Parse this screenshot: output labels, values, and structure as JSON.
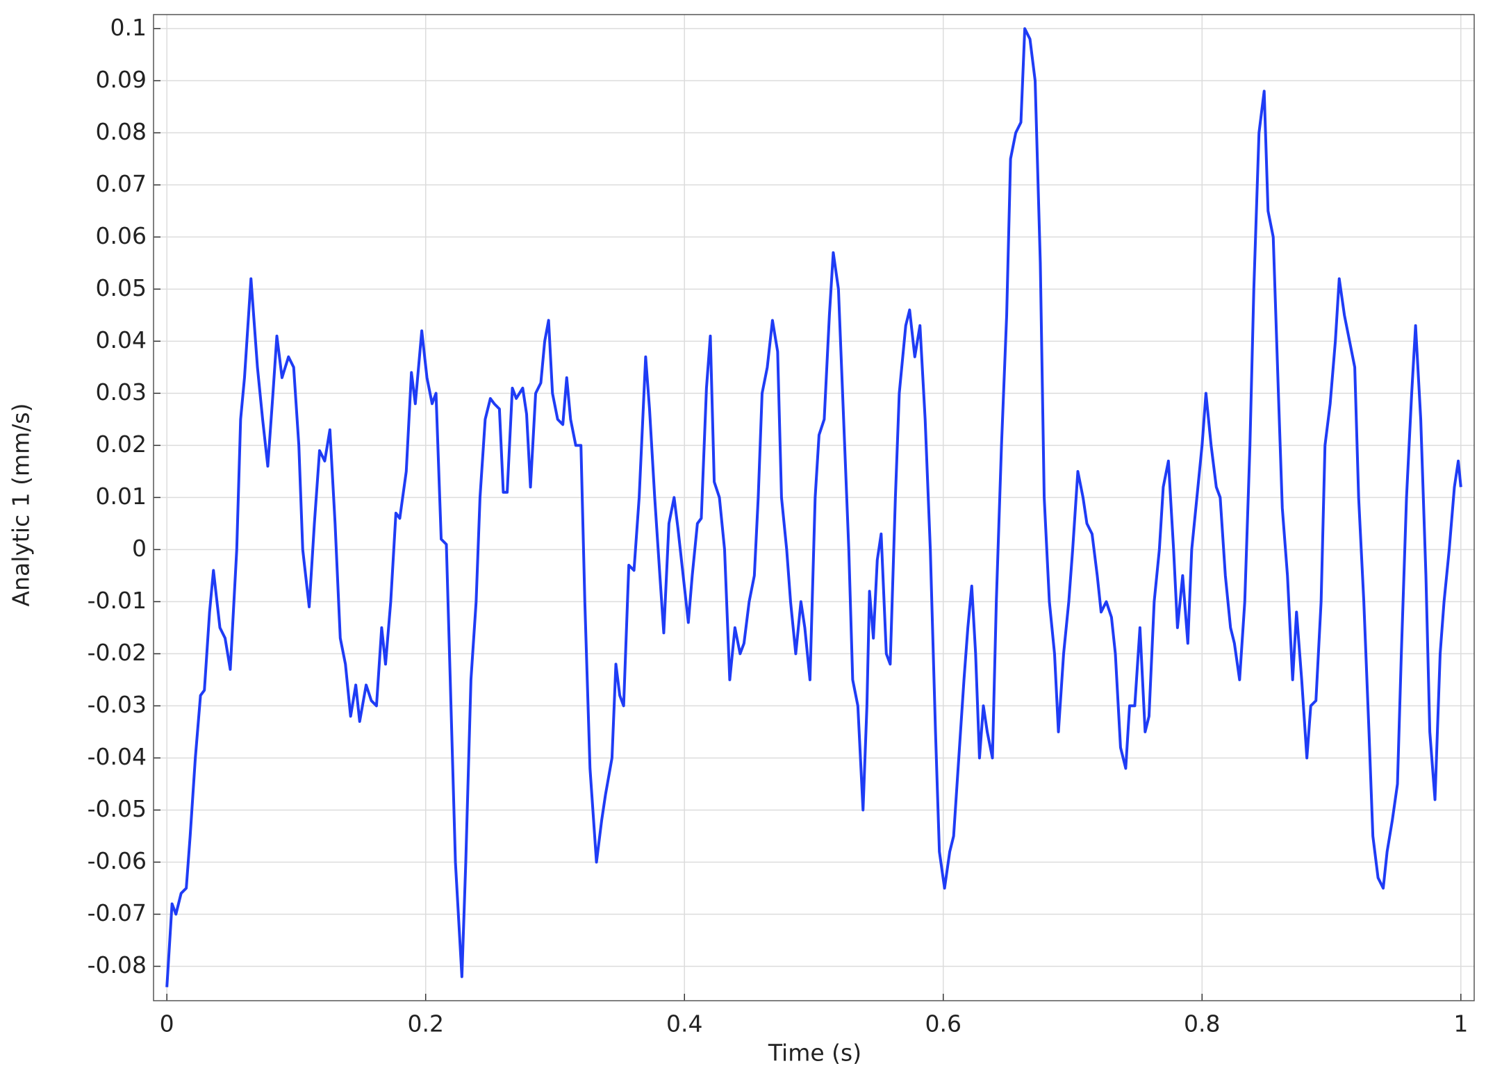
{
  "chart_data": {
    "type": "line",
    "xlabel": "Time (s)",
    "ylabel": "Analytic 1 (mm/s)",
    "x": [
      0,
      0.004,
      0.007,
      0.011,
      0.015,
      0.018,
      0.022,
      0.026,
      0.029,
      0.033,
      0.036,
      0.041,
      0.045,
      0.049,
      0.054,
      0.057,
      0.06,
      0.065,
      0.07,
      0.074,
      0.078,
      0.082,
      0.085,
      0.089,
      0.094,
      0.098,
      0.102,
      0.105,
      0.11,
      0.114,
      0.118,
      0.122,
      0.126,
      0.13,
      0.134,
      0.138,
      0.142,
      0.146,
      0.149,
      0.154,
      0.158,
      0.162,
      0.166,
      0.169,
      0.173,
      0.177,
      0.18,
      0.185,
      0.189,
      0.192,
      0.197,
      0.201,
      0.205,
      0.208,
      0.212,
      0.216,
      0.219,
      0.223,
      0.228,
      0.231,
      0.235,
      0.239,
      0.242,
      0.246,
      0.25,
      0.253,
      0.257,
      0.26,
      0.263,
      0.267,
      0.27,
      0.275,
      0.278,
      0.281,
      0.285,
      0.289,
      0.292,
      0.295,
      0.298,
      0.302,
      0.306,
      0.309,
      0.312,
      0.316,
      0.32,
      0.323,
      0.327,
      0.332,
      0.336,
      0.339,
      0.344,
      0.347,
      0.35,
      0.353,
      0.357,
      0.361,
      0.365,
      0.37,
      0.373,
      0.377,
      0.381,
      0.384,
      0.388,
      0.392,
      0.395,
      0.399,
      0.403,
      0.406,
      0.41,
      0.413,
      0.417,
      0.42,
      0.423,
      0.427,
      0.431,
      0.435,
      0.439,
      0.443,
      0.446,
      0.45,
      0.454,
      0.457,
      0.46,
      0.464,
      0.468,
      0.472,
      0.475,
      0.479,
      0.482,
      0.486,
      0.49,
      0.493,
      0.497,
      0.501,
      0.504,
      0.508,
      0.512,
      0.515,
      0.519,
      0.523,
      0.527,
      0.53,
      0.534,
      0.538,
      0.541,
      0.543,
      0.546,
      0.549,
      0.552,
      0.556,
      0.559,
      0.563,
      0.566,
      0.571,
      0.574,
      0.578,
      0.582,
      0.586,
      0.59,
      0.594,
      0.597,
      0.601,
      0.605,
      0.608,
      0.612,
      0.616,
      0.619,
      0.622,
      0.625,
      0.628,
      0.631,
      0.634,
      0.638,
      0.641,
      0.645,
      0.649,
      0.652,
      0.656,
      0.66,
      0.663,
      0.667,
      0.671,
      0.675,
      0.678,
      0.682,
      0.686,
      0.689,
      0.693,
      0.697,
      0.7,
      0.704,
      0.708,
      0.711,
      0.715,
      0.719,
      0.722,
      0.726,
      0.73,
      0.733,
      0.737,
      0.741,
      0.744,
      0.748,
      0.752,
      0.756,
      0.759,
      0.763,
      0.767,
      0.77,
      0.774,
      0.778,
      0.781,
      0.785,
      0.789,
      0.792,
      0.796,
      0.8,
      0.803,
      0.807,
      0.811,
      0.814,
      0.818,
      0.822,
      0.825,
      0.829,
      0.833,
      0.837,
      0.84,
      0.844,
      0.848,
      0.851,
      0.855,
      0.859,
      0.862,
      0.866,
      0.87,
      0.873,
      0.877,
      0.881,
      0.884,
      0.888,
      0.892,
      0.895,
      0.899,
      0.903,
      0.906,
      0.91,
      0.914,
      0.918,
      0.921,
      0.925,
      0.929,
      0.932,
      0.936,
      0.94,
      0.943,
      0.947,
      0.951,
      0.954,
      0.958,
      0.962,
      0.965,
      0.969,
      0.973,
      0.976,
      0.98,
      0.984,
      0.987,
      0.991,
      0.995,
      0.998,
      1.0
    ],
    "values": [
      -0.084,
      -0.068,
      -0.07,
      -0.066,
      -0.065,
      -0.055,
      -0.04,
      -0.028,
      -0.027,
      -0.012,
      -0.004,
      -0.015,
      -0.017,
      -0.023,
      0.0,
      0.025,
      0.033,
      0.052,
      0.035,
      0.025,
      0.016,
      0.03,
      0.041,
      0.033,
      0.037,
      0.035,
      0.02,
      0.0,
      -0.011,
      0.005,
      0.019,
      0.017,
      0.023,
      0.005,
      -0.017,
      -0.022,
      -0.032,
      -0.026,
      -0.033,
      -0.026,
      -0.029,
      -0.03,
      -0.015,
      -0.022,
      -0.01,
      0.007,
      0.006,
      0.015,
      0.034,
      0.028,
      0.042,
      0.033,
      0.028,
      0.03,
      0.002,
      0.001,
      -0.025,
      -0.06,
      -0.082,
      -0.06,
      -0.025,
      -0.01,
      0.01,
      0.025,
      0.029,
      0.028,
      0.027,
      0.011,
      0.011,
      0.031,
      0.029,
      0.031,
      0.026,
      0.012,
      0.03,
      0.032,
      0.04,
      0.044,
      0.03,
      0.025,
      0.024,
      0.033,
      0.025,
      0.02,
      0.02,
      -0.01,
      -0.042,
      -0.06,
      -0.052,
      -0.047,
      -0.04,
      -0.022,
      -0.028,
      -0.03,
      -0.003,
      -0.004,
      0.01,
      0.037,
      0.027,
      0.01,
      -0.005,
      -0.016,
      0.005,
      0.01,
      0.004,
      -0.005,
      -0.014,
      -0.005,
      0.005,
      0.006,
      0.031,
      0.041,
      0.013,
      0.01,
      0.0,
      -0.025,
      -0.015,
      -0.02,
      -0.018,
      -0.01,
      -0.005,
      0.01,
      0.03,
      0.035,
      0.044,
      0.038,
      0.01,
      0.0,
      -0.01,
      -0.02,
      -0.01,
      -0.015,
      -0.025,
      0.01,
      0.022,
      0.025,
      0.045,
      0.057,
      0.05,
      0.025,
      0.0,
      -0.025,
      -0.03,
      -0.05,
      -0.03,
      -0.008,
      -0.017,
      -0.002,
      0.003,
      -0.02,
      -0.022,
      0.01,
      0.03,
      0.043,
      0.046,
      0.037,
      0.043,
      0.025,
      0.0,
      -0.035,
      -0.058,
      -0.065,
      -0.058,
      -0.055,
      -0.04,
      -0.025,
      -0.015,
      -0.007,
      -0.02,
      -0.04,
      -0.03,
      -0.035,
      -0.04,
      -0.01,
      0.02,
      0.045,
      0.075,
      0.08,
      0.082,
      0.1,
      0.098,
      0.09,
      0.055,
      0.01,
      -0.01,
      -0.02,
      -0.035,
      -0.02,
      -0.01,
      0.0,
      0.015,
      0.01,
      0.005,
      0.003,
      -0.005,
      -0.012,
      -0.01,
      -0.013,
      -0.02,
      -0.038,
      -0.042,
      -0.03,
      -0.03,
      -0.015,
      -0.035,
      -0.032,
      -0.01,
      0.0,
      0.012,
      0.017,
      0.0,
      -0.015,
      -0.005,
      -0.018,
      0.0,
      0.01,
      0.02,
      0.03,
      0.02,
      0.012,
      0.01,
      -0.005,
      -0.015,
      -0.018,
      -0.025,
      -0.01,
      0.02,
      0.05,
      0.08,
      0.088,
      0.065,
      0.06,
      0.03,
      0.008,
      -0.005,
      -0.025,
      -0.012,
      -0.025,
      -0.04,
      -0.03,
      -0.029,
      -0.01,
      0.02,
      0.028,
      0.04,
      0.052,
      0.045,
      0.04,
      0.035,
      0.01,
      -0.01,
      -0.035,
      -0.055,
      -0.063,
      -0.065,
      -0.058,
      -0.052,
      -0.045,
      -0.02,
      0.01,
      0.03,
      0.043,
      0.025,
      -0.005,
      -0.035,
      -0.048,
      -0.02,
      -0.01,
      0.0,
      0.012,
      0.017,
      0.012
    ],
    "color": "#1f3cf5",
    "xlim": [
      -0.0103,
      1.0103
    ],
    "ylim": [
      -0.0866,
      0.1027
    ],
    "xticks": [
      0,
      0.2,
      0.4,
      0.6,
      0.8,
      1
    ],
    "yticks": [
      0.1,
      0.09,
      0.08,
      0.07,
      0.06,
      0.05,
      0.04,
      0.03,
      0.02,
      0.01,
      0,
      -0.01,
      -0.02,
      -0.03,
      -0.04,
      -0.05,
      -0.06,
      -0.07,
      -0.08
    ],
    "grid": true
  }
}
